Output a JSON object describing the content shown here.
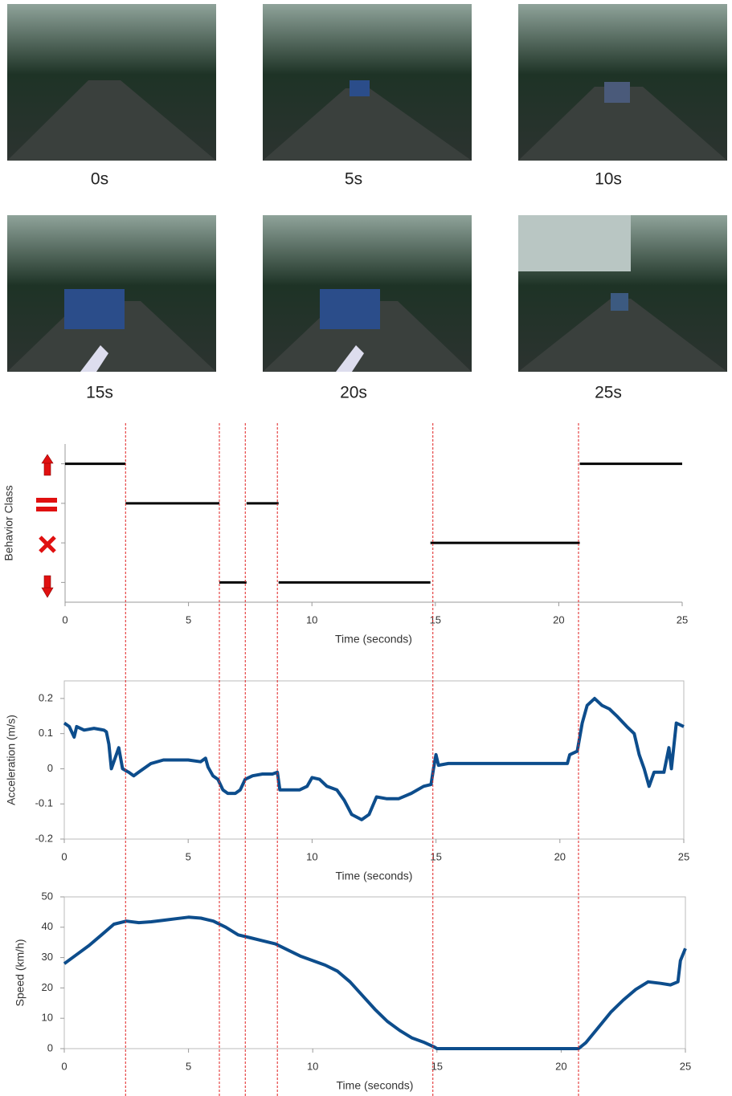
{
  "frame_labels": [
    "0s",
    "5s",
    "10s",
    "15s",
    "20s",
    "25s"
  ],
  "boundaries": [
    2.45,
    6.25,
    7.3,
    8.6,
    14.9,
    20.8
  ],
  "boundary_color": "#e02020",
  "chart_data": [
    {
      "type": "step",
      "ylabel": "Behavior Class",
      "xlabel": "Time (seconds)",
      "color": "#000000",
      "xlim": [
        0,
        25
      ],
      "xticks": [
        0,
        5,
        10,
        15,
        20,
        25
      ],
      "ylim": [
        0.5,
        4.5
      ],
      "yticks": [
        1,
        2,
        3,
        4
      ],
      "segments": [
        {
          "start": 0,
          "end": 2.45,
          "value": 4
        },
        {
          "start": 2.45,
          "end": 6.25,
          "value": 3
        },
        {
          "start": 6.25,
          "end": 7.35,
          "value": 1
        },
        {
          "start": 7.35,
          "end": 8.65,
          "value": 3
        },
        {
          "start": 8.65,
          "end": 14.8,
          "value": 1
        },
        {
          "start": 14.8,
          "end": 20.85,
          "value": 2
        },
        {
          "start": 20.85,
          "end": 25,
          "value": 4
        }
      ]
    },
    {
      "type": "line",
      "ylabel": "Acceleration (m/s)",
      "xlabel": "Time (seconds)",
      "color": "#0d4d8c",
      "xlim": [
        0,
        25
      ],
      "xticks": [
        0,
        5,
        10,
        15,
        20,
        25
      ],
      "ylim": [
        -0.2,
        0.25
      ],
      "yticks": [
        -0.2,
        -0.1,
        0,
        0.1,
        0.2
      ],
      "x": [
        0,
        0.2,
        0.4,
        0.5,
        0.8,
        1.2,
        1.6,
        1.7,
        1.8,
        1.9,
        2.05,
        2.2,
        2.35,
        2.6,
        2.8,
        3.0,
        3.2,
        3.5,
        4.0,
        4.5,
        5.0,
        5.5,
        5.7,
        5.8,
        6.0,
        6.2,
        6.4,
        6.6,
        6.9,
        7.1,
        7.3,
        7.6,
        8.0,
        8.4,
        8.6,
        8.7,
        9.0,
        9.5,
        9.8,
        10.0,
        10.3,
        10.6,
        11.0,
        11.3,
        11.6,
        12.0,
        12.3,
        12.6,
        13.0,
        13.5,
        14.0,
        14.5,
        14.8,
        14.9,
        15.0,
        15.1,
        15.5,
        16,
        18,
        20.3,
        20.4,
        20.7,
        20.9,
        21.1,
        21.4,
        21.7,
        22.0,
        22.3,
        22.7,
        23.0,
        23.2,
        23.4,
        23.6,
        23.8,
        24.2,
        24.4,
        24.5,
        24.7,
        25.0
      ],
      "values": [
        0.13,
        0.12,
        0.09,
        0.12,
        0.11,
        0.115,
        0.11,
        0.105,
        0.07,
        0.0,
        0.03,
        0.06,
        0.0,
        -0.01,
        -0.02,
        -0.01,
        0.0,
        0.015,
        0.025,
        0.025,
        0.025,
        0.02,
        0.03,
        0.005,
        -0.02,
        -0.03,
        -0.06,
        -0.07,
        -0.07,
        -0.06,
        -0.03,
        -0.02,
        -0.015,
        -0.015,
        -0.01,
        -0.06,
        -0.06,
        -0.06,
        -0.05,
        -0.025,
        -0.03,
        -0.05,
        -0.06,
        -0.09,
        -0.13,
        -0.145,
        -0.13,
        -0.08,
        -0.085,
        -0.085,
        -0.07,
        -0.05,
        -0.045,
        0.0,
        0.04,
        0.01,
        0.015,
        0.015,
        0.015,
        0.015,
        0.04,
        0.05,
        0.13,
        0.18,
        0.2,
        0.18,
        0.17,
        0.15,
        0.12,
        0.1,
        0.04,
        0.0,
        -0.05,
        -0.01,
        -0.01,
        0.06,
        0.0,
        0.13,
        0.12
      ]
    },
    {
      "type": "line",
      "ylabel": "Speed (km/h)",
      "xlabel": "Time (seconds)",
      "color": "#0d4d8c",
      "xlim": [
        0,
        25
      ],
      "xticks": [
        0,
        5,
        10,
        15,
        20,
        25
      ],
      "ylim": [
        0,
        50
      ],
      "yticks": [
        0,
        10,
        20,
        30,
        40,
        50
      ],
      "x": [
        0,
        0.5,
        1,
        1.5,
        2,
        2.5,
        3,
        3.5,
        4,
        4.5,
        5,
        5.5,
        6,
        6.5,
        7,
        7.5,
        8,
        8.5,
        9,
        9.5,
        10,
        10.5,
        11,
        11.5,
        12,
        12.5,
        13,
        13.5,
        14,
        14.5,
        14.9,
        15,
        20.7,
        21,
        21.5,
        22,
        22.5,
        23,
        23.5,
        24,
        24.4,
        24.7,
        24.8,
        25
      ],
      "values": [
        28,
        31,
        34,
        37.5,
        41,
        42,
        41.5,
        41.8,
        42.3,
        42.8,
        43.3,
        43,
        42,
        40,
        37.5,
        36.5,
        35.5,
        34.5,
        32.5,
        30.5,
        29,
        27.5,
        25.5,
        22,
        17.5,
        13,
        9,
        6,
        3.5,
        2,
        0.5,
        0,
        0,
        2,
        7,
        12,
        16,
        19.5,
        22,
        21.5,
        21,
        22,
        29,
        33
      ]
    }
  ]
}
